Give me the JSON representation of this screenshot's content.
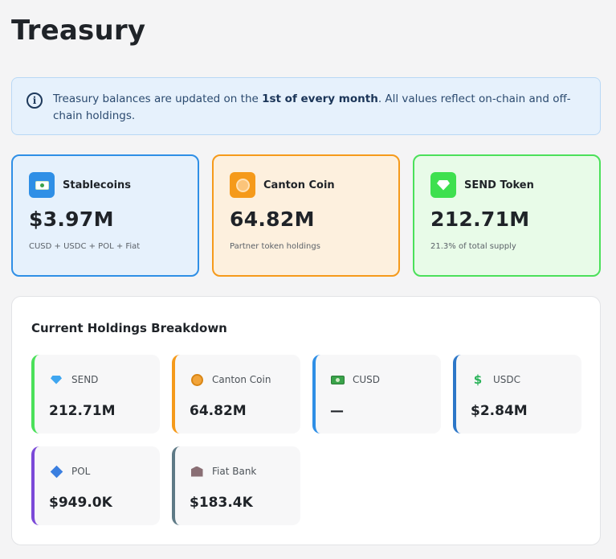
{
  "page": {
    "title": "Treasury"
  },
  "notice": {
    "text_before": "Treasury balances are updated on the ",
    "text_bold": "1st of every month",
    "text_after": ". All values reflect on-chain and off-chain holdings."
  },
  "summary_cards": [
    {
      "label": "Stablecoins",
      "value": "$3.97M",
      "subtitle": "CUSD + USDC + POL + Fiat",
      "icon": "money-icon",
      "color": "#2f8fe6"
    },
    {
      "label": "Canton Coin",
      "value": "64.82M",
      "subtitle": "Partner token holdings",
      "icon": "coin-icon",
      "color": "#f59a1b"
    },
    {
      "label": "SEND Token",
      "value": "212.71M",
      "subtitle": "21.3% of total supply",
      "icon": "gem-icon",
      "color": "#4be05a"
    }
  ],
  "breakdown": {
    "title": "Current Holdings Breakdown",
    "items": [
      {
        "label": "SEND",
        "value": "212.71M",
        "icon": "gem-icon",
        "color": "#4be05a"
      },
      {
        "label": "Canton Coin",
        "value": "64.82M",
        "icon": "coin-icon",
        "color": "#f59a1b"
      },
      {
        "label": "CUSD",
        "value": "—",
        "icon": "money-icon",
        "color": "#2f8fe6"
      },
      {
        "label": "USDC",
        "value": "$2.84M",
        "icon": "dollar-icon",
        "color": "#2d77c8"
      },
      {
        "label": "POL",
        "value": "$949.0K",
        "icon": "diamond-icon",
        "color": "#7b49d8"
      },
      {
        "label": "Fiat Bank",
        "value": "$183.4K",
        "icon": "bank-icon",
        "color": "#5e7a86"
      }
    ]
  }
}
